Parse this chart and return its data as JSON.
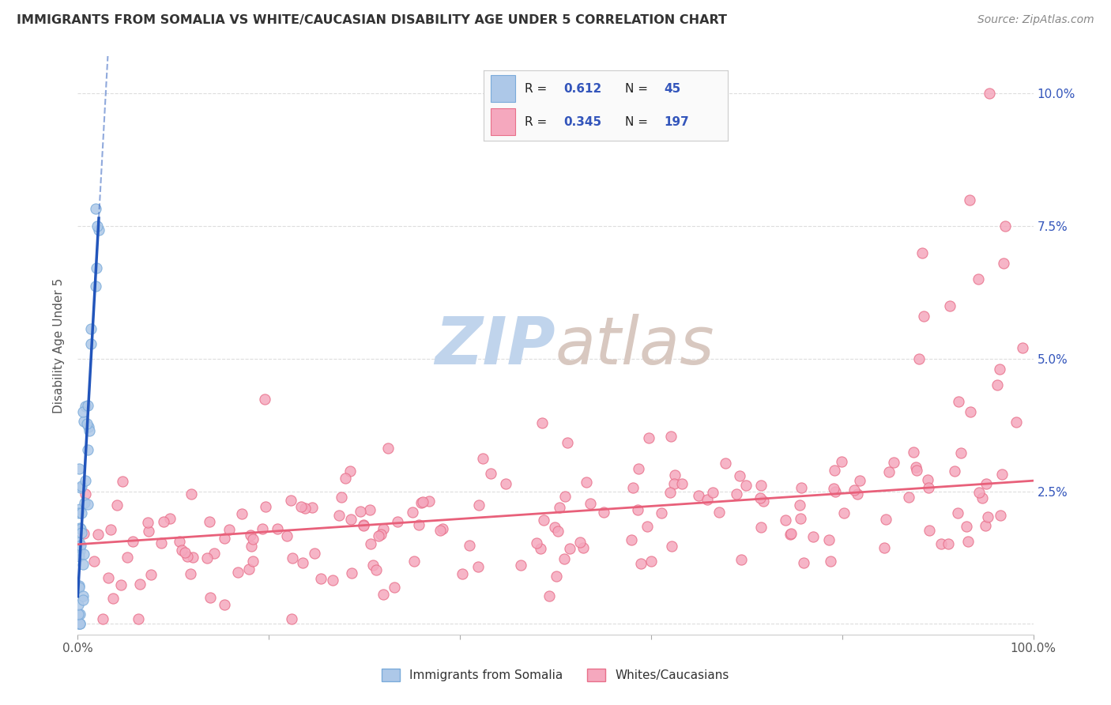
{
  "title": "IMMIGRANTS FROM SOMALIA VS WHITE/CAUCASIAN DISABILITY AGE UNDER 5 CORRELATION CHART",
  "source": "Source: ZipAtlas.com",
  "ylabel": "Disability Age Under 5",
  "somalia_R": 0.612,
  "somalia_N": 45,
  "white_R": 0.345,
  "white_N": 197,
  "somalia_color": "#adc8e8",
  "somalia_edge": "#7aabda",
  "white_color": "#f5a8be",
  "white_edge": "#e8708a",
  "somalia_line_color": "#2255bb",
  "white_line_color": "#e8607a",
  "watermark_zip_color": "#c0d4ec",
  "watermark_atlas_color": "#d8c8c0",
  "background": "#ffffff",
  "grid_color": "#dddddd",
  "xlim": [
    0.0,
    1.0
  ],
  "ylim": [
    -0.002,
    0.107
  ],
  "legend_label1": "Immigrants from Somalia",
  "legend_label2": "Whites/Caucasians"
}
